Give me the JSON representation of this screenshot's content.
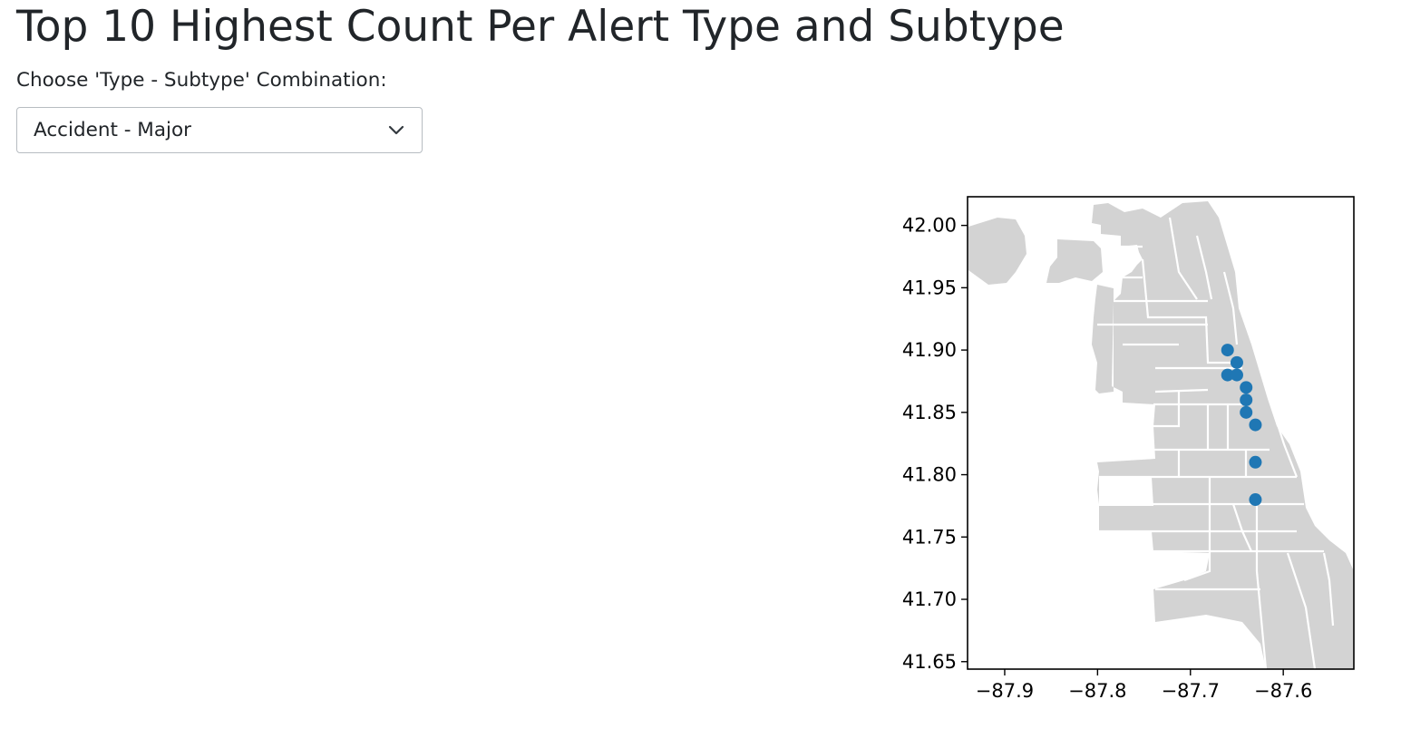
{
  "page": {
    "title": "Top 10 Highest Count Per Alert Type and Subtype",
    "select_label": "Choose 'Type - Subtype' Combination:",
    "selected_value": "Accident - Major"
  },
  "colors": {
    "map_fill": "#d3d3d3",
    "map_edges": "#ffffff",
    "marker": "#1f77b4"
  },
  "icons": {
    "dropdown": "chevron-down-icon"
  },
  "chart_data": {
    "type": "scatter",
    "title": "",
    "xlabel": "",
    "ylabel": "",
    "base_layer": "Chicago neighborhood boundaries (gray polygons)",
    "xlim": [
      -87.94,
      -87.524
    ],
    "ylim": [
      41.644,
      42.023
    ],
    "x_ticks": [
      -87.9,
      -87.8,
      -87.7,
      -87.6
    ],
    "x_tick_labels": [
      "−87.9",
      "−87.8",
      "−87.7",
      "−87.6"
    ],
    "y_ticks": [
      42.0,
      41.95,
      41.9,
      41.85,
      41.8,
      41.75,
      41.7,
      41.65
    ],
    "y_tick_labels": [
      "42.00",
      "41.95",
      "41.90",
      "41.85",
      "41.80",
      "41.75",
      "41.70",
      "41.65"
    ],
    "grid": false,
    "points": [
      {
        "x": -87.66,
        "y": 41.9
      },
      {
        "x": -87.65,
        "y": 41.89
      },
      {
        "x": -87.66,
        "y": 41.88
      },
      {
        "x": -87.65,
        "y": 41.88
      },
      {
        "x": -87.64,
        "y": 41.87
      },
      {
        "x": -87.64,
        "y": 41.86
      },
      {
        "x": -87.64,
        "y": 41.85
      },
      {
        "x": -87.63,
        "y": 41.84
      },
      {
        "x": -87.63,
        "y": 41.81
      },
      {
        "x": -87.63,
        "y": 41.78
      }
    ]
  }
}
